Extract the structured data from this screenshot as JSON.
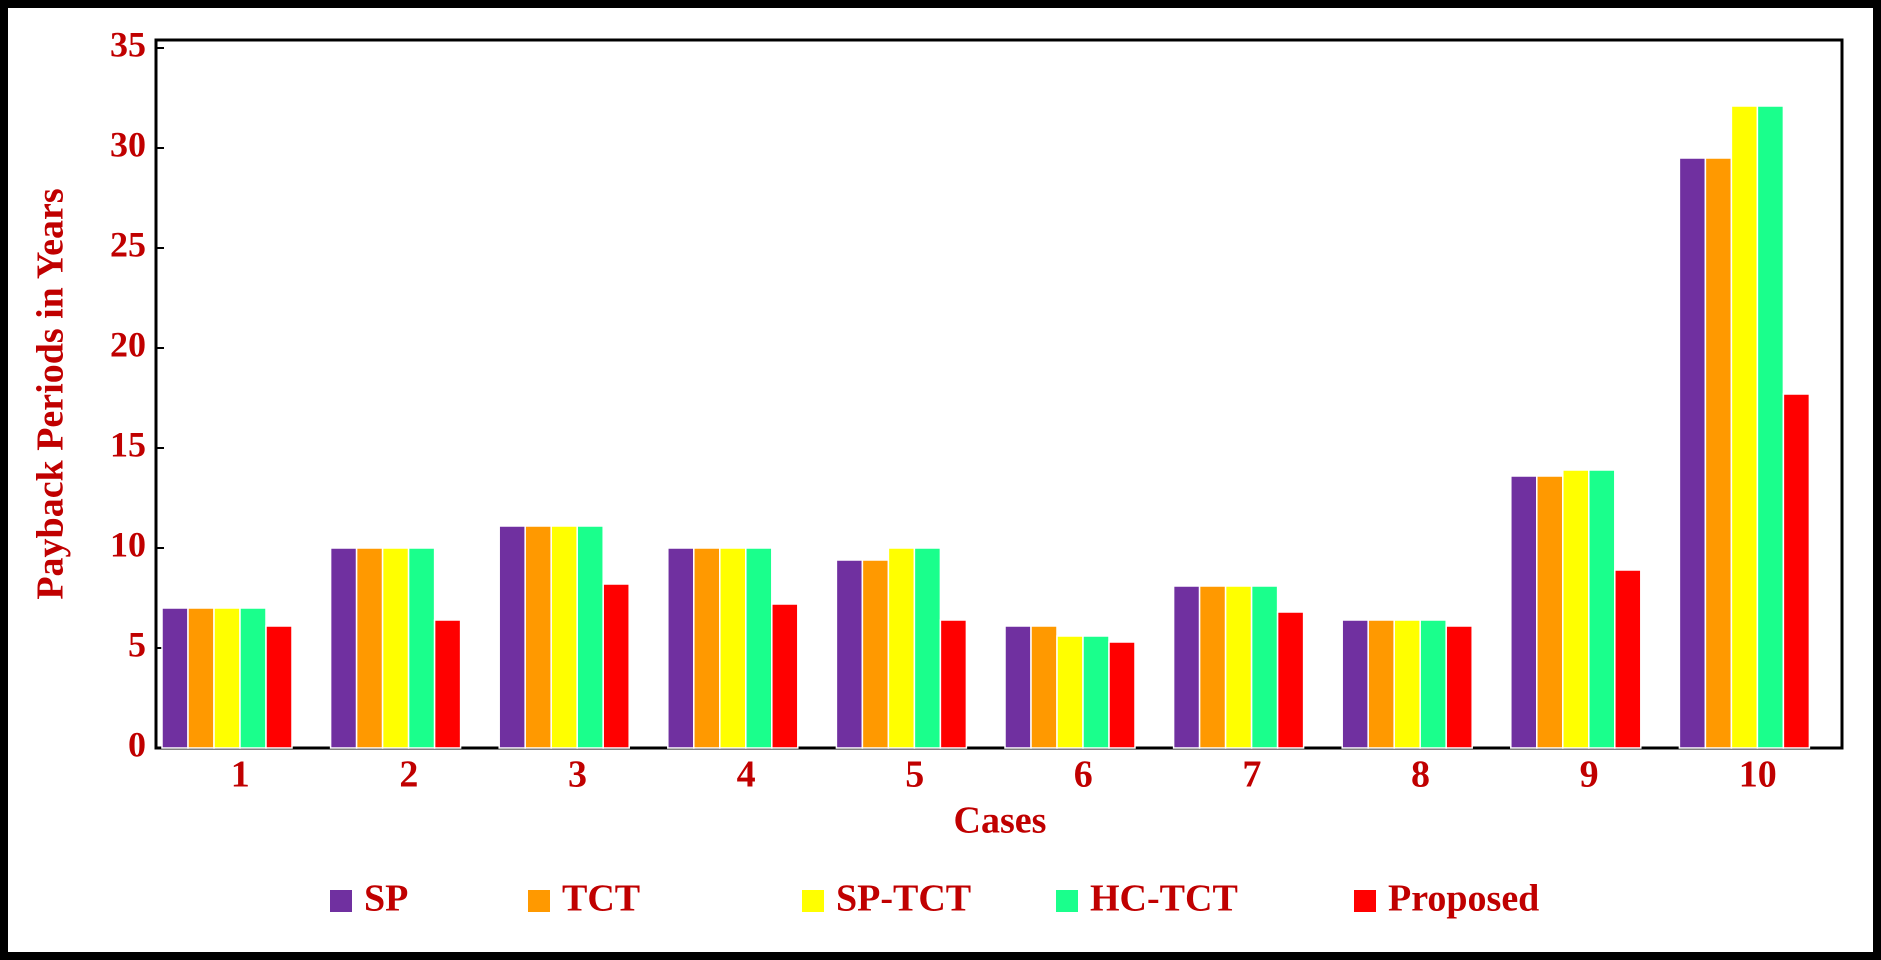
{
  "chart_data": {
    "type": "bar",
    "x_label": "Cases",
    "y_label": "Payback Periods in Years",
    "categories": [
      "1",
      "2",
      "3",
      "4",
      "5",
      "6",
      "7",
      "8",
      "9",
      "10"
    ],
    "series": [
      {
        "name": "SP",
        "color": "#7030a0",
        "values": [
          7,
          10,
          11.1,
          10,
          9.4,
          6.1,
          8.1,
          6.4,
          13.6,
          29.5
        ]
      },
      {
        "name": "TCT",
        "color": "#ff9900",
        "values": [
          7,
          10,
          11.1,
          10,
          9.4,
          6.1,
          8.1,
          6.4,
          13.6,
          29.5
        ]
      },
      {
        "name": "SP-TCT",
        "color": "#ffff00",
        "values": [
          7,
          10,
          11.1,
          10,
          10,
          5.6,
          8.1,
          6.4,
          13.9,
          32.1
        ]
      },
      {
        "name": "HC-TCT",
        "color": "#1aff8c",
        "values": [
          7,
          10,
          11.1,
          10,
          10,
          5.6,
          8.1,
          6.4,
          13.9,
          32.1
        ]
      },
      {
        "name": "Proposed",
        "color": "#ff0000",
        "values": [
          6.1,
          6.4,
          8.2,
          7.2,
          6.4,
          5.3,
          6.8,
          6.1,
          8.9,
          17.7
        ]
      }
    ],
    "ylim": [
      0,
      35
    ],
    "yticks": [
      0,
      5,
      10,
      15,
      20,
      25,
      30,
      35
    ]
  }
}
